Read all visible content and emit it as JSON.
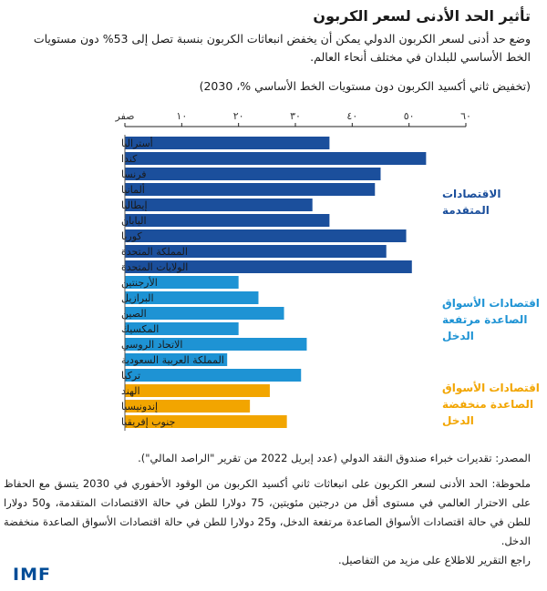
{
  "header": {
    "title": "تأثير الحد الأدنى لسعر الكربون",
    "subtitle": "وضع حد أدنى لسعر الكربون الدولي يمكن أن يخفض انبعاثات الكربون بنسبة تصل إلى 53% دون مستويات الخط الأساسي للبلدان في مختلف أنحاء العالم.",
    "units": "(تخفيض ثاني أكسيد الكربون دون مستويات الخط الأساسي %، 2030)"
  },
  "chart_data": {
    "type": "bar",
    "orientation": "horizontal",
    "xlim": [
      0,
      60
    ],
    "ticks": [
      0,
      10,
      20,
      30,
      40,
      50,
      60
    ],
    "tick_labels": [
      "صفر",
      "١٠",
      "٢٠",
      "٣٠",
      "٤٠",
      "٥٠",
      "٦٠"
    ],
    "categories": [
      "أستراليا",
      "كندا",
      "فرنسا",
      "ألمانيا",
      "إيطاليا",
      "اليابان",
      "كوريا",
      "المملكة المتحدة",
      "الولايات المتحدة",
      "الأرجنتين",
      "البرازيل",
      "الصين",
      "المكسيك",
      "الاتحاد الروسي",
      "المملكة العربية السعودية",
      "تركيا",
      "الهند",
      "إندونيسيا",
      "جنوب إفريقيا"
    ],
    "values": [
      36,
      53,
      45,
      44,
      33,
      36,
      49.5,
      46,
      50.5,
      20,
      23.5,
      28,
      20,
      32,
      18,
      31,
      25.5,
      22,
      28.5
    ],
    "groups": [
      {
        "label_lines": [
          "الاقتصادات",
          "المتقدمة"
        ],
        "color": "#1b4f9c",
        "label_color": "#1b4f9c",
        "count": 9
      },
      {
        "label_lines": [
          "اقتصادات الأسواق",
          "الصاعدة مرتفعة",
          "الدخل"
        ],
        "color": "#1e93d4",
        "label_color": "#1e93d4",
        "count": 7
      },
      {
        "label_lines": [
          "اقتصادات الأسواق",
          "الصاعدة منخفضة",
          "الدخل"
        ],
        "color": "#f2a500",
        "label_color": "#f2a500",
        "count": 3
      }
    ]
  },
  "footer": {
    "source": "المصدر: تقديرات خبراء صندوق النقد الدولي (عدد إبريل 2022 من تقرير \"الراصد المالي\").",
    "note": "ملحوظة: الحد الأدنى لسعر الكربون على انبعاثات ثاني أكسيد الكربون من الوقود الأحفوري في 2030 يتسق مع الحفاظ على الاحترار العالمي في مستوى أقل من درجتين مئويتين، 75 دولارا للطن في حالة الاقتصادات المتقدمة، و50 دولارا للطن في حالة اقتصادات الأسواق الصاعدة مرتفعة الدخل، و25 دولارا للطن في حالة اقتصادات الأسواق الصاعدة منخفضة الدخل.",
    "see_report": "راجع التقرير للاطلاع على مزيد من التفاصيل.",
    "logo": "IMF"
  }
}
